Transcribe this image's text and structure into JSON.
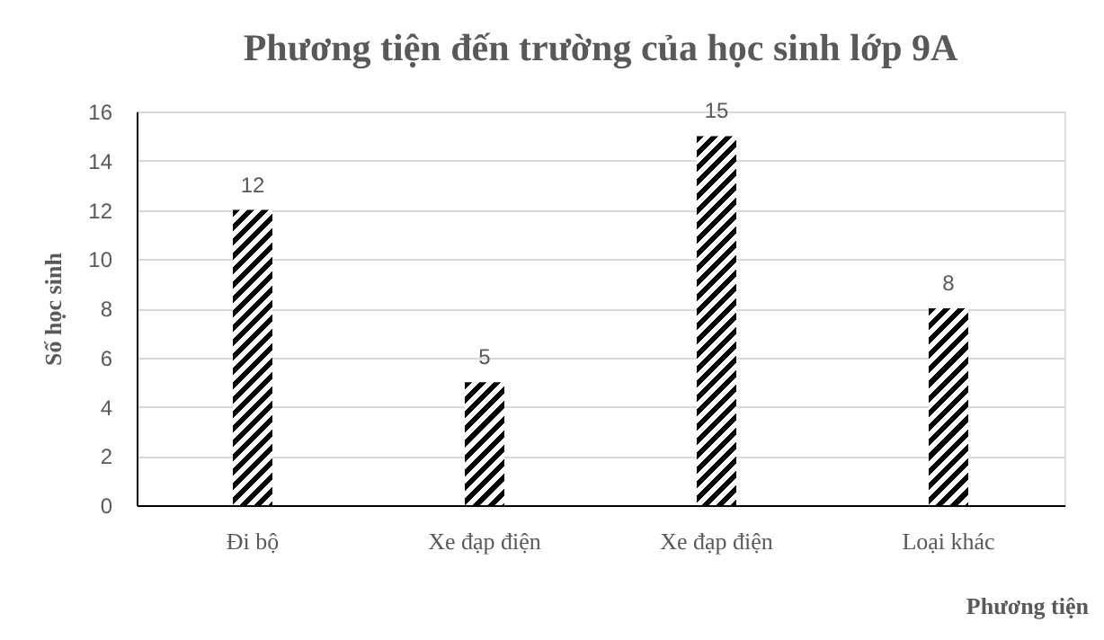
{
  "chart_data": {
    "type": "bar",
    "title": "Phương tiện đến trường của học sinh lớp 9A",
    "xlabel": "Phương tiện",
    "ylabel": "Số học sinh",
    "categories": [
      "Đi bộ",
      "Xe đạp điện",
      "Xe đạp điện",
      "Loại khác"
    ],
    "values": [
      12,
      5,
      15,
      8
    ],
    "color": "#000000",
    "ylim": [
      0,
      16
    ],
    "yticks": [
      0,
      2,
      4,
      6,
      8,
      10,
      12,
      14,
      16
    ],
    "grid": "y",
    "data_labels": true
  }
}
